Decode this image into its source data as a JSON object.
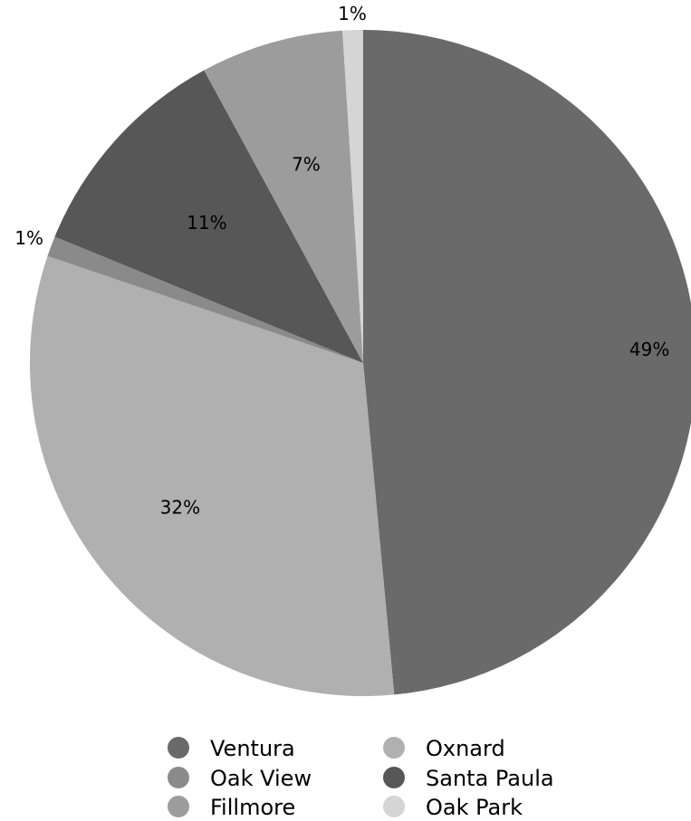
{
  "chart_data": {
    "type": "pie",
    "categories": [
      "Ventura",
      "Oxnard",
      "Oak View",
      "Santa Paula",
      "Fillmore",
      "Oak Park"
    ],
    "values": [
      49,
      32,
      1,
      11,
      7,
      1
    ],
    "labels": [
      "49%",
      "32%",
      "1%",
      "11%",
      "7%",
      "1%"
    ],
    "colors": [
      "#6a6a6a",
      "#b0b0b0",
      "#8a8a8a",
      "#575757",
      "#9c9c9c",
      "#d5d5d5"
    ],
    "start_direction": "12 o'clock",
    "direction": "clockwise",
    "legend": {
      "placement": "bottom",
      "columns": [
        [
          "Ventura",
          "Oak View",
          "Fillmore"
        ],
        [
          "Oxnard",
          "Santa Paula",
          "Oak Park"
        ]
      ]
    },
    "title": ""
  }
}
